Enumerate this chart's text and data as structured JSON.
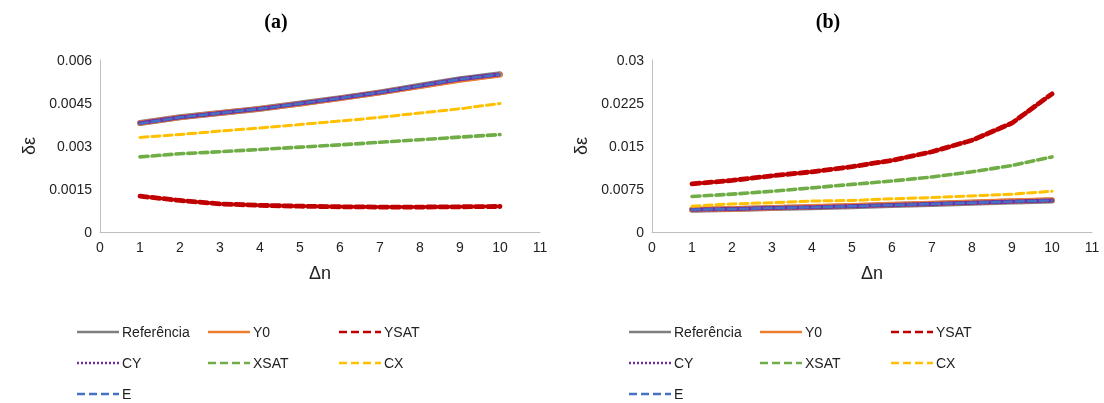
{
  "chart_data": [
    {
      "type": "line",
      "title": "(a)",
      "xlabel": "Δn",
      "ylabel": "δε",
      "x": [
        1,
        2,
        3,
        4,
        5,
        6,
        7,
        8,
        9,
        10
      ],
      "xlim": [
        0,
        11
      ],
      "xticks": [
        0,
        1,
        2,
        3,
        4,
        5,
        6,
        7,
        8,
        9,
        10,
        11
      ],
      "ylim": [
        0,
        0.006
      ],
      "yticks": [
        0,
        0.0015,
        0.003,
        0.0045,
        0.006
      ],
      "grid": false,
      "legend": "bottom",
      "marker": "none",
      "series": [
        {
          "name": "Referência",
          "color": "#7f7f7f",
          "line_style": "solid",
          "values": [
            0.0038,
            0.004,
            0.00415,
            0.0043,
            0.00448,
            0.00467,
            0.00487,
            0.0051,
            0.00533,
            0.0055
          ]
        },
        {
          "name": "Y0",
          "color": "#ed7d31",
          "line_style": "solid",
          "values": [
            0.0038,
            0.004,
            0.00415,
            0.0043,
            0.00447,
            0.00466,
            0.00486,
            0.00508,
            0.0053,
            0.00548
          ]
        },
        {
          "name": "YSAT",
          "color": "#c00000",
          "line_style": "dashed",
          "values": [
            0.00125,
            0.0011,
            0.00098,
            0.00093,
            0.0009,
            0.00088,
            0.00087,
            0.00087,
            0.00088,
            0.00089
          ]
        },
        {
          "name": "CY",
          "color": "#7030a0",
          "line_style": "dotted",
          "values": [
            0.0038,
            0.004,
            0.00415,
            0.0043,
            0.00448,
            0.00467,
            0.00487,
            0.0051,
            0.00533,
            0.0055
          ]
        },
        {
          "name": "XSAT",
          "color": "#70ad47",
          "line_style": "dashed",
          "values": [
            0.00262,
            0.00273,
            0.0028,
            0.00288,
            0.00296,
            0.00304,
            0.00313,
            0.00322,
            0.00331,
            0.0034
          ]
        },
        {
          "name": "CX",
          "color": "#ffc000",
          "line_style": "dashed",
          "values": [
            0.0033,
            0.0034,
            0.00352,
            0.00363,
            0.00375,
            0.00387,
            0.004,
            0.00415,
            0.0043,
            0.00448
          ]
        },
        {
          "name": "E",
          "color": "#4472c4",
          "line_style": "dashed",
          "values": [
            0.00378,
            0.004,
            0.00415,
            0.0043,
            0.00448,
            0.00467,
            0.00487,
            0.0051,
            0.00533,
            0.0055
          ]
        }
      ]
    },
    {
      "type": "line",
      "title": "(b)",
      "xlabel": "Δn",
      "ylabel": "δε",
      "x": [
        1,
        2,
        3,
        4,
        5,
        6,
        7,
        8,
        9,
        10
      ],
      "xlim": [
        0,
        11
      ],
      "xticks": [
        0,
        1,
        2,
        3,
        4,
        5,
        6,
        7,
        8,
        9,
        10,
        11
      ],
      "ylim": [
        0,
        0.03
      ],
      "yticks": [
        0,
        0.0075,
        0.015,
        0.0225,
        0.03
      ],
      "grid": false,
      "legend": "bottom",
      "marker": "none",
      "series": [
        {
          "name": "Referência",
          "color": "#7f7f7f",
          "line_style": "solid",
          "values": [
            0.0039,
            0.004,
            0.0042,
            0.0043,
            0.0045,
            0.0047,
            0.0049,
            0.0051,
            0.0053,
            0.0055
          ]
        },
        {
          "name": "Y0",
          "color": "#ed7d31",
          "line_style": "solid",
          "values": [
            0.0039,
            0.004,
            0.0042,
            0.0044,
            0.0046,
            0.0048,
            0.005,
            0.0052,
            0.0054,
            0.0056
          ]
        },
        {
          "name": "YSAT",
          "color": "#c00000",
          "line_style": "dashed",
          "values": [
            0.0084,
            0.009,
            0.0098,
            0.0105,
            0.0114,
            0.0125,
            0.014,
            0.016,
            0.019,
            0.0241
          ]
        },
        {
          "name": "CY",
          "color": "#7030a0",
          "line_style": "dotted",
          "values": [
            0.0039,
            0.004,
            0.0042,
            0.0043,
            0.0045,
            0.0047,
            0.0049,
            0.0051,
            0.0053,
            0.0055
          ]
        },
        {
          "name": "XSAT",
          "color": "#70ad47",
          "line_style": "dashed",
          "values": [
            0.0062,
            0.0066,
            0.0071,
            0.0077,
            0.0083,
            0.0089,
            0.0096,
            0.0105,
            0.0116,
            0.0131
          ]
        },
        {
          "name": "CX",
          "color": "#ffc000",
          "line_style": "dashed",
          "values": [
            0.0045,
            0.0049,
            0.0051,
            0.0054,
            0.0055,
            0.0058,
            0.006,
            0.0063,
            0.0066,
            0.0071
          ]
        },
        {
          "name": "E",
          "color": "#4472c4",
          "line_style": "dashed",
          "values": [
            0.0039,
            0.004,
            0.0042,
            0.0043,
            0.0045,
            0.0047,
            0.0049,
            0.0051,
            0.0053,
            0.0055
          ]
        }
      ]
    }
  ]
}
